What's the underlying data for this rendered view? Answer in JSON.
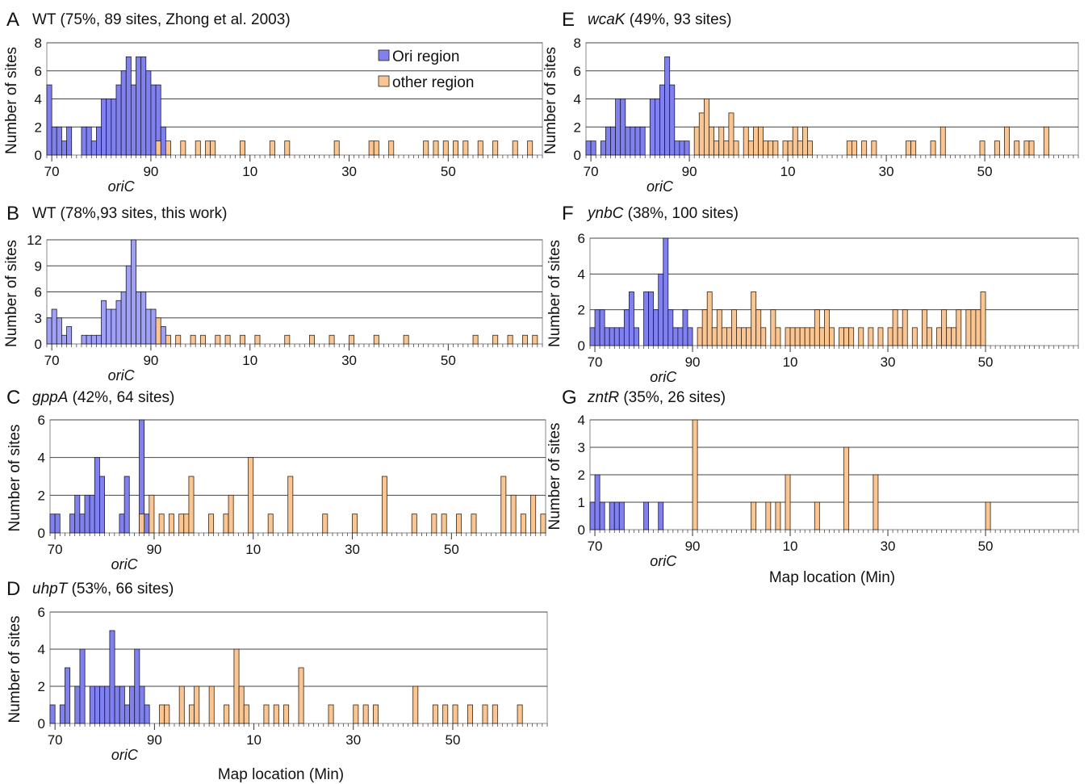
{
  "colors": {
    "ori": "#8080ee",
    "ori_light": "#a0a0f5",
    "other": "#f9c592",
    "grid": "#444444",
    "frame": "#888888"
  },
  "legend": {
    "ori": "Ori region",
    "other": "other region"
  },
  "common": {
    "ylabel": "Number of sites",
    "xlabel": "Map location (Min)",
    "oric": "oriC",
    "xticks": [
      "70",
      "90",
      "10",
      "30",
      "50"
    ]
  },
  "chart_data": [
    {
      "id": "A",
      "type": "bar",
      "letter": "A",
      "gene": "",
      "title_rest": "WT (75%, 89 sites, Zhong et al. 2003)",
      "ylim": [
        0,
        8
      ],
      "yticks": [
        0,
        2,
        4,
        6,
        8
      ],
      "ori_values": [
        5,
        2,
        2,
        1,
        2,
        0,
        0,
        2,
        2,
        1,
        2,
        4,
        4,
        4,
        5,
        6,
        7,
        5,
        7,
        7,
        6,
        5,
        5,
        2
      ],
      "other_values": [
        [
          91,
          1
        ],
        [
          93,
          1
        ],
        [
          96,
          1
        ],
        [
          99,
          1
        ],
        [
          101,
          1
        ],
        [
          102,
          1
        ],
        [
          108,
          1
        ],
        [
          114,
          1
        ],
        [
          117,
          1
        ],
        [
          127,
          1
        ],
        [
          134,
          1
        ],
        [
          135,
          1
        ],
        [
          138,
          1
        ],
        [
          145,
          1
        ],
        [
          147,
          1
        ],
        [
          149,
          1
        ],
        [
          151,
          1
        ],
        [
          153,
          1
        ],
        [
          156,
          1
        ],
        [
          159,
          1
        ],
        [
          163,
          1
        ],
        [
          166,
          1
        ]
      ],
      "other_label_values": {
        "91": 1
      }
    },
    {
      "id": "B",
      "type": "bar",
      "letter": "B",
      "gene": "",
      "title_rest": "WT (78%,93 sites, this work)",
      "ylim": [
        0,
        12
      ],
      "yticks": [
        0,
        3,
        6,
        9,
        12
      ],
      "ori_values": [
        3,
        4,
        3,
        1,
        2,
        0,
        0,
        1,
        1,
        1,
        1,
        5,
        4,
        4,
        5,
        6,
        9,
        12,
        6,
        6,
        4,
        4,
        2,
        2
      ],
      "other_values": [
        [
          91,
          3
        ],
        [
          93,
          1
        ],
        [
          95,
          1
        ],
        [
          98,
          1
        ],
        [
          100,
          1
        ],
        [
          103,
          1
        ],
        [
          105,
          1
        ],
        [
          108,
          1
        ],
        [
          111,
          1
        ],
        [
          117,
          1
        ],
        [
          122,
          1
        ],
        [
          126,
          1
        ],
        [
          130,
          1
        ],
        [
          135,
          1
        ],
        [
          141,
          1
        ],
        [
          155,
          1
        ],
        [
          159,
          1
        ],
        [
          162,
          1
        ],
        [
          165,
          1
        ],
        [
          167,
          1
        ]
      ]
    },
    {
      "id": "C",
      "type": "bar",
      "letter": "C",
      "gene": "gppA",
      "title_rest": " (42%, 64 sites)",
      "ylim": [
        0,
        6
      ],
      "yticks": [
        0,
        2,
        4,
        6
      ],
      "ori_values": [
        1,
        1,
        0,
        0,
        1,
        2,
        1,
        2,
        2,
        4,
        3,
        0,
        0,
        0,
        1,
        3,
        0,
        0,
        6,
        1
      ],
      "other_values": [
        [
          87,
          1
        ],
        [
          89,
          2
        ],
        [
          91,
          1
        ],
        [
          93,
          1
        ],
        [
          95,
          1
        ],
        [
          96,
          1
        ],
        [
          97,
          3
        ],
        [
          101,
          1
        ],
        [
          104,
          1
        ],
        [
          105,
          2
        ],
        [
          109,
          4
        ],
        [
          113,
          1
        ],
        [
          117,
          3
        ],
        [
          124,
          1
        ],
        [
          130,
          1
        ],
        [
          136,
          3
        ],
        [
          142,
          1
        ],
        [
          146,
          1
        ],
        [
          148,
          1
        ],
        [
          151,
          1
        ],
        [
          154,
          1
        ],
        [
          160,
          3
        ],
        [
          162,
          2
        ],
        [
          164,
          1
        ],
        [
          166,
          2
        ],
        [
          168,
          1
        ],
        [
          170,
          1
        ]
      ],
      "chart_offset": 0
    },
    {
      "id": "D",
      "type": "bar",
      "letter": "D",
      "gene": "uhpT",
      "title_rest": " (53%, 66 sites)",
      "ylim": [
        0,
        6
      ],
      "yticks": [
        0,
        2,
        4,
        6
      ],
      "ori_values": [
        1,
        0,
        1,
        3,
        0,
        2,
        4,
        0,
        2,
        2,
        2,
        2,
        5,
        2,
        2,
        1,
        2,
        4,
        2,
        1
      ],
      "other_values": [
        [
          91,
          1
        ],
        [
          92,
          1
        ],
        [
          95,
          2
        ],
        [
          97,
          1
        ],
        [
          98,
          2
        ],
        [
          101,
          2
        ],
        [
          104,
          1
        ],
        [
          106,
          4
        ],
        [
          107,
          2
        ],
        [
          108,
          1
        ],
        [
          112,
          1
        ],
        [
          114,
          1
        ],
        [
          116,
          1
        ],
        [
          119,
          3
        ],
        [
          125,
          1
        ],
        [
          130,
          1
        ],
        [
          132,
          1
        ],
        [
          134,
          1
        ],
        [
          142,
          2
        ],
        [
          146,
          1
        ],
        [
          148,
          1
        ],
        [
          150,
          1
        ],
        [
          153,
          1
        ],
        [
          156,
          1
        ],
        [
          158,
          1
        ],
        [
          163,
          1
        ]
      ]
    },
    {
      "id": "E",
      "type": "bar",
      "letter": "E",
      "gene": "wcaK",
      "title_rest": " (49%, 93 sites)",
      "ylim": [
        0,
        8
      ],
      "yticks": [
        0,
        2,
        4,
        6,
        8
      ],
      "ori_values": [
        1,
        1,
        0,
        1,
        2,
        2,
        4,
        4,
        2,
        2,
        2,
        2,
        0,
        4,
        4,
        5,
        7,
        5,
        1,
        1,
        1
      ],
      "other_values": [
        [
          91,
          2
        ],
        [
          92,
          3
        ],
        [
          93,
          4
        ],
        [
          94,
          2
        ],
        [
          95,
          1
        ],
        [
          96,
          2
        ],
        [
          97,
          1
        ],
        [
          98,
          3
        ],
        [
          99,
          1
        ],
        [
          100,
          0
        ],
        [
          101,
          2
        ],
        [
          102,
          1
        ],
        [
          103,
          2
        ],
        [
          104,
          2
        ],
        [
          105,
          1
        ],
        [
          106,
          1
        ],
        [
          107,
          1
        ],
        [
          109,
          1
        ],
        [
          110,
          1
        ],
        [
          111,
          2
        ],
        [
          112,
          1
        ],
        [
          113,
          2
        ],
        [
          114,
          1
        ],
        [
          117,
          0
        ],
        [
          122,
          1
        ],
        [
          123,
          1
        ],
        [
          125,
          1
        ],
        [
          127,
          1
        ],
        [
          134,
          1
        ],
        [
          135,
          1
        ],
        [
          139,
          1
        ],
        [
          141,
          2
        ],
        [
          149,
          1
        ],
        [
          152,
          1
        ],
        [
          154,
          2
        ],
        [
          156,
          1
        ],
        [
          158,
          1
        ],
        [
          159,
          1
        ],
        [
          162,
          2
        ]
      ]
    },
    {
      "id": "F",
      "type": "bar",
      "letter": "F",
      "gene": "ynbC",
      "title_rest": " (38%, 100 sites)",
      "ylim": [
        0,
        6
      ],
      "yticks": [
        0,
        2,
        4,
        6
      ],
      "ori_values": [
        1,
        2,
        2,
        1,
        1,
        1,
        1,
        2,
        3,
        1,
        0,
        3,
        3,
        2,
        4,
        6,
        2,
        1,
        1,
        2,
        1
      ],
      "other_values": [
        [
          91,
          1
        ],
        [
          92,
          2
        ],
        [
          93,
          3
        ],
        [
          94,
          1
        ],
        [
          95,
          2
        ],
        [
          96,
          1
        ],
        [
          97,
          1
        ],
        [
          98,
          2
        ],
        [
          99,
          1
        ],
        [
          100,
          1
        ],
        [
          101,
          1
        ],
        [
          102,
          3
        ],
        [
          103,
          2
        ],
        [
          104,
          1
        ],
        [
          106,
          2
        ],
        [
          107,
          1
        ],
        [
          109,
          1
        ],
        [
          110,
          1
        ],
        [
          111,
          1
        ],
        [
          112,
          1
        ],
        [
          113,
          1
        ],
        [
          114,
          1
        ],
        [
          115,
          2
        ],
        [
          116,
          1
        ],
        [
          117,
          2
        ],
        [
          118,
          1
        ],
        [
          120,
          1
        ],
        [
          121,
          1
        ],
        [
          122,
          1
        ],
        [
          124,
          1
        ],
        [
          126,
          1
        ],
        [
          128,
          1
        ],
        [
          130,
          1
        ],
        [
          131,
          2
        ],
        [
          132,
          1
        ],
        [
          133,
          2
        ],
        [
          135,
          1
        ],
        [
          137,
          2
        ],
        [
          138,
          1
        ],
        [
          140,
          1
        ],
        [
          141,
          2
        ],
        [
          142,
          1
        ],
        [
          143,
          1
        ],
        [
          144,
          2
        ],
        [
          146,
          2
        ],
        [
          147,
          2
        ],
        [
          148,
          2
        ],
        [
          149,
          3
        ]
      ]
    },
    {
      "id": "G",
      "type": "bar",
      "letter": "G",
      "gene": "zntR",
      "title_rest": " (35%, 26 sites)",
      "ylim": [
        0,
        4
      ],
      "yticks": [
        0,
        1,
        2,
        3,
        4
      ],
      "ori_values": [
        1,
        2,
        1,
        0,
        1,
        1,
        1,
        0,
        0,
        0,
        0,
        1,
        0,
        0,
        1
      ],
      "other_values": [
        [
          90,
          4
        ],
        [
          102,
          1
        ],
        [
          105,
          1
        ],
        [
          107,
          1
        ],
        [
          109,
          2
        ],
        [
          115,
          1
        ],
        [
          121,
          3
        ],
        [
          127,
          2
        ],
        [
          150,
          1
        ]
      ]
    }
  ]
}
